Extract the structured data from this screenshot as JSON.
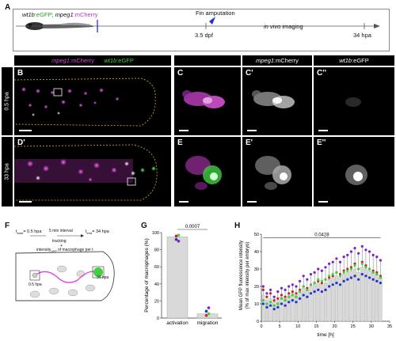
{
  "panels": {
    "A": "A",
    "B": "B",
    "C": "C",
    "C1": "C'",
    "C2": "C''",
    "D": "D'",
    "E": "E",
    "E1": "E'",
    "E2": "E''",
    "F": "F",
    "G": "G",
    "H": "H"
  },
  "panel_a": {
    "line_wt1b": "wt1b",
    "line_egfp": ":eGFP; ",
    "line_mpeg": "mpeg1",
    "line_mcherry": ":mCherry",
    "amputation": "Fin amputation",
    "dpf": "3.5 dpf",
    "in_vivo": "in vivo",
    "imaging": " imaging",
    "end": "34 hpa"
  },
  "headers": {
    "merge_mpeg": "mpeg1",
    "merge_mcherry": ":mCherry",
    "merge_wt1b": "wt1b",
    "merge_egfp": ":eGFP",
    "col2_mpeg": "mpeg1",
    "col2_suffix": ":mCherry",
    "col3_wt1b": "wt1b",
    "col3_suffix": ":eGFP"
  },
  "rows": {
    "top": "0.5 hpa",
    "bottom": "33 hpa"
  },
  "panel_f": {
    "t0": "t",
    "t0_sub": "start",
    "t0_val": "= 0.5 hpa",
    "interval": "5 min interval",
    "t1": "t",
    "t1_sub": "end",
    "t1_val": "= 34 hpa",
    "tracking": "tracking",
    "plus": "+",
    "intensity": "intensity",
    "intensity_sub": "GFP",
    "intensity_rest": " of macrophage per t",
    "label_start": "0.5 hpa",
    "label_end": "34 hpa"
  },
  "colors": {
    "magenta": "#e040e0",
    "green": "#40d040",
    "red": "#cc2222",
    "blue": "#2233cc",
    "purple": "#7a22cc",
    "bar": "#d9d9d9"
  },
  "chart_data": [
    {
      "type": "bar",
      "categories": [
        "activation",
        "migration"
      ],
      "values": [
        95,
        5
      ],
      "points": {
        "activation": [
          {
            "y": 96,
            "color": "red"
          },
          {
            "y": 97,
            "color": "green"
          },
          {
            "y": 92,
            "color": "blue"
          },
          {
            "y": 90,
            "color": "purple"
          }
        ],
        "migration": [
          {
            "y": 3,
            "color": "red"
          },
          {
            "y": 5,
            "color": "green"
          },
          {
            "y": 8,
            "color": "blue"
          },
          {
            "y": 12,
            "color": "purple"
          }
        ]
      },
      "ylabel": "Percentage of macrophages (%)",
      "ylim": [
        0,
        100
      ],
      "yticks": [
        "0",
        "20",
        "40",
        "60",
        "80",
        "100"
      ],
      "significance": "0.0007"
    },
    {
      "type": "bar",
      "x": [
        0.5,
        1.5,
        2.5,
        3.5,
        4.5,
        5.5,
        6.5,
        7.5,
        8.5,
        9.5,
        10.5,
        11.5,
        12.5,
        13.5,
        14.5,
        15.5,
        16.5,
        17.5,
        18.5,
        19.5,
        20.5,
        21.5,
        22.5,
        23.5,
        24.5,
        25.5,
        26.5,
        27.5,
        28.5,
        29.5,
        30.5,
        31.5,
        32.5
      ],
      "values": [
        15,
        12,
        13,
        11,
        12,
        14,
        13,
        15,
        16,
        15,
        17,
        19,
        18,
        20,
        21,
        22,
        21,
        22,
        24,
        25,
        26,
        25,
        27,
        28,
        29,
        30,
        28,
        31,
        30,
        29,
        28,
        27,
        25
      ],
      "series": [
        {
          "color": "red",
          "values": [
            18,
            14,
            16,
            12,
            13,
            15,
            14,
            16,
            17,
            16,
            18,
            20,
            19,
            21,
            22,
            23,
            22,
            24,
            25,
            26,
            28,
            27,
            29,
            30,
            31,
            33,
            30,
            34,
            32,
            30,
            29,
            28,
            26
          ]
        },
        {
          "color": "green",
          "values": [
            12,
            10,
            11,
            9,
            10,
            13,
            12,
            14,
            15,
            14,
            17,
            20,
            18,
            21,
            22,
            24,
            23,
            24,
            26,
            27,
            28,
            26,
            28,
            29,
            30,
            32,
            30,
            33,
            31,
            30,
            28,
            27,
            25
          ]
        },
        {
          "color": "blue",
          "values": [
            10,
            8,
            9,
            7,
            8,
            10,
            9,
            11,
            12,
            11,
            13,
            15,
            14,
            16,
            17,
            18,
            17,
            18,
            20,
            21,
            22,
            21,
            23,
            24,
            25,
            26,
            24,
            27,
            26,
            25,
            24,
            23,
            22
          ]
        },
        {
          "color": "purple",
          "values": [
            20,
            16,
            18,
            14,
            17,
            19,
            18,
            20,
            21,
            20,
            23,
            26,
            24,
            27,
            28,
            30,
            29,
            31,
            33,
            34,
            36,
            34,
            37,
            38,
            40,
            42,
            39,
            43,
            41,
            40,
            38,
            37,
            35
          ]
        }
      ],
      "xlabel": "time [h]",
      "ylabel": "Mean GFP fluorescence intensity",
      "ylabel2": "(% of max intensity per embryo)",
      "ylim": [
        0,
        50
      ],
      "xlim": [
        0,
        35
      ],
      "yticks": [
        "0",
        "10",
        "20",
        "30",
        "40",
        "50"
      ],
      "xticks": [
        "0",
        "5",
        "10",
        "15",
        "20",
        "25",
        "30",
        "35"
      ],
      "significance": "0.0428"
    }
  ]
}
